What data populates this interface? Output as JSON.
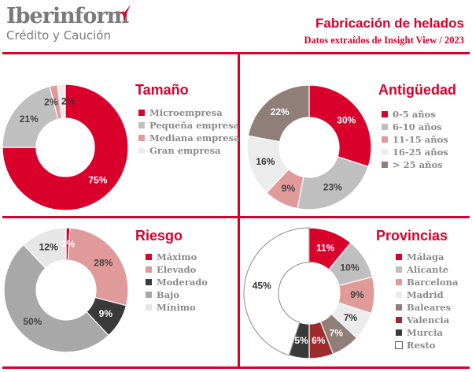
{
  "header": {
    "logo_main": "Iberinform",
    "logo_sub": "Crédito y Caución",
    "title": "Fabricación de helados",
    "subtitle": "Datos extraídos de Insight View / 2023"
  },
  "colors": {
    "accent": "#d9002b"
  },
  "chart_data": [
    {
      "type": "pie",
      "variant": "donut",
      "title": "Tamaño",
      "categories": [
        "Microempresa",
        "Pequeña empresa",
        "Mediana empresa",
        "Gran empresa"
      ],
      "values": [
        75,
        21,
        2,
        2
      ],
      "labels": [
        "75%",
        "21%",
        "2%",
        "2%"
      ],
      "colors": [
        "#d9002b",
        "#bfbfbf",
        "#e09a9a",
        "#ececec"
      ],
      "legend": "right"
    },
    {
      "type": "pie",
      "variant": "donut",
      "title": "Antigüedad",
      "categories": [
        "0-5 años",
        "6-10 años",
        "11-15 años",
        "16-25 años",
        "> 25 años"
      ],
      "values": [
        30,
        23,
        9,
        16,
        22
      ],
      "labels": [
        "30%",
        "23%",
        "9%",
        "16%",
        "22%"
      ],
      "colors": [
        "#d9002b",
        "#bfbfbf",
        "#e09a9a",
        "#ececec",
        "#8f7f78"
      ],
      "legend": "right"
    },
    {
      "type": "pie",
      "variant": "donut",
      "title": "Riesgo",
      "categories": [
        "Máximo",
        "Elevado",
        "Moderado",
        "Bajo",
        "Mínimo"
      ],
      "values": [
        1,
        28,
        9,
        50,
        12
      ],
      "labels": [
        "1%",
        "28%",
        "9%",
        "50%",
        "12%"
      ],
      "colors": [
        "#d9002b",
        "#e09a9a",
        "#3a3a3a",
        "#a8a8a8",
        "#e6e6e6"
      ],
      "legend": "right"
    },
    {
      "type": "pie",
      "variant": "donut",
      "title": "Provincias",
      "categories": [
        "Málaga",
        "Alicante",
        "Barcelona",
        "Madrid",
        "Baleares",
        "Valencia",
        "Murcia",
        "Resto"
      ],
      "values": [
        11,
        10,
        9,
        7,
        7,
        6,
        5,
        45
      ],
      "labels": [
        "11%",
        "10%",
        "9%",
        "7%",
        "7%",
        "6%",
        "5%",
        "45%"
      ],
      "colors": [
        "#d9002b",
        "#bfbfbf",
        "#e09a9a",
        "#ececec",
        "#8f7f78",
        "#9e2b2e",
        "#3a3a3a",
        "#ffffff"
      ],
      "legend": "right"
    }
  ]
}
